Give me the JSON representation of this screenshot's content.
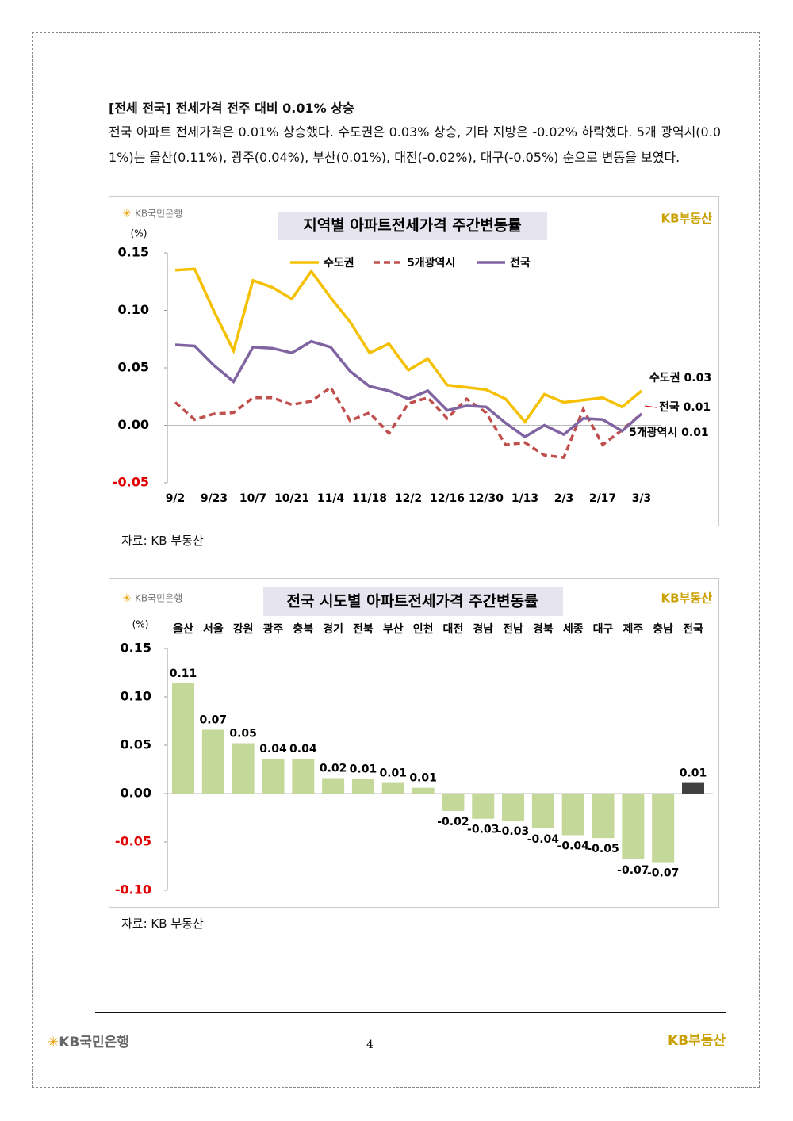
{
  "heading": "[전세 전국] 전세가격 전주 대비 0.01% 상승",
  "paragraph": "전국 아파트 전세가격은 0.01% 상승했다. 수도권은 0.03% 상승, 기타 지방은 -0.02% 하락했다. 5개 광역시(0.01%)는 울산(0.11%), 광주(0.04%), 부산(0.01%), 대전(-0.02%), 대구(-0.05%) 순으로 변동을 보였다.",
  "brand": {
    "bank": "KB국민은행",
    "realty": "KB부동산"
  },
  "page_number": "4",
  "chart_data": [
    {
      "type": "line",
      "title": "지역별 아파트전세가격 주간변동률",
      "subtitle": "(%)",
      "source": "자료: KB 부동산",
      "categories": [
        "9/2",
        null,
        "9/23",
        null,
        "10/7",
        null,
        "10/21",
        null,
        "11/4",
        null,
        "11/18",
        null,
        "12/2",
        null,
        "12/16",
        null,
        "12/30",
        null,
        "1/13",
        null,
        "2/3",
        null,
        "2/17",
        null,
        "3/3"
      ],
      "series": [
        {
          "name": "수도권",
          "color": "#f5c000",
          "dashed": false,
          "values": [
            0.135,
            0.136,
            0.099,
            0.065,
            0.126,
            0.12,
            0.11,
            0.134,
            0.111,
            0.09,
            0.063,
            0.071,
            0.048,
            0.058,
            0.035,
            0.033,
            0.031,
            0.023,
            0.003,
            0.027,
            0.02,
            0.022,
            0.024,
            0.016,
            0.03
          ]
        },
        {
          "name": "5개광역시",
          "color": "#c0504d",
          "dashed": true,
          "values": [
            0.02,
            0.005,
            0.01,
            0.011,
            0.024,
            0.024,
            0.018,
            0.021,
            0.033,
            0.004,
            0.011,
            -0.007,
            0.019,
            0.024,
            0.006,
            0.023,
            0.011,
            -0.017,
            -0.015,
            -0.026,
            -0.028,
            0.014,
            -0.017,
            -0.004,
            0.01
          ]
        },
        {
          "name": "전국",
          "color": "#8064a2",
          "dashed": false,
          "values": [
            0.07,
            0.069,
            0.052,
            0.038,
            0.068,
            0.067,
            0.063,
            0.073,
            0.068,
            0.047,
            0.034,
            0.03,
            0.023,
            0.03,
            0.013,
            0.017,
            0.016,
            0.002,
            -0.01,
            0.0,
            -0.008,
            0.006,
            0.005,
            -0.005,
            0.01
          ]
        }
      ],
      "annotations": [
        "수도권 0.03",
        "전국 0.01",
        "5개광역시 0.01"
      ],
      "ylim": [
        -0.05,
        0.15
      ],
      "yticks": [
        0.15,
        {
          "value": 0.1,
          "label": "0.10"
        },
        0.05,
        {
          "value": 0,
          "label": "0.00"
        },
        -0.05
      ],
      "negative_tick_color": "#e00000",
      "grid": false
    },
    {
      "type": "bar",
      "title": "전국 시도별 아파트전세가격 주간변동률",
      "subtitle": "(%)",
      "source": "자료: KB 부동산",
      "categories": [
        "울산",
        "서울",
        "강원",
        "광주",
        "충북",
        "경기",
        "전북",
        "부산",
        "인천",
        "대전",
        "경남",
        "전남",
        "경북",
        "세종",
        "대구",
        "제주",
        "충남",
        "전국"
      ],
      "values": [
        0.114,
        0.066,
        0.052,
        0.036,
        0.036,
        0.016,
        0.015,
        0.011,
        0.006,
        -0.018,
        -0.026,
        -0.028,
        -0.036,
        -0.043,
        -0.046,
        -0.068,
        -0.071,
        0.011
      ],
      "value_labels": [
        "0.11",
        "0.07",
        "0.05",
        "0.04",
        "0.04",
        "0.02",
        "0.01",
        "0.01",
        "0.01",
        "-0.02",
        "-0.03",
        "-0.03",
        "-0.04",
        "-0.04",
        "-0.05",
        "-0.07",
        "-0.07",
        "0.01"
      ],
      "colors": [
        "#c4d89a",
        "#c4d89a",
        "#c4d89a",
        "#c4d89a",
        "#c4d89a",
        "#c4d89a",
        "#c4d89a",
        "#c4d89a",
        "#c4d89a",
        "#c4d89a",
        "#c4d89a",
        "#c4d89a",
        "#c4d89a",
        "#c4d89a",
        "#c4d89a",
        "#c4d89a",
        "#c4d89a",
        "#404040"
      ],
      "ylim": [
        -0.1,
        0.15
      ],
      "yticks": [
        0.15,
        {
          "value": 0.1,
          "label": "0.10"
        },
        0.05,
        {
          "value": 0,
          "label": "0.00"
        },
        -0.05,
        {
          "value": -0.1,
          "label": "-0.10"
        }
      ],
      "negative_tick_color": "#e00000",
      "grid": false
    }
  ]
}
